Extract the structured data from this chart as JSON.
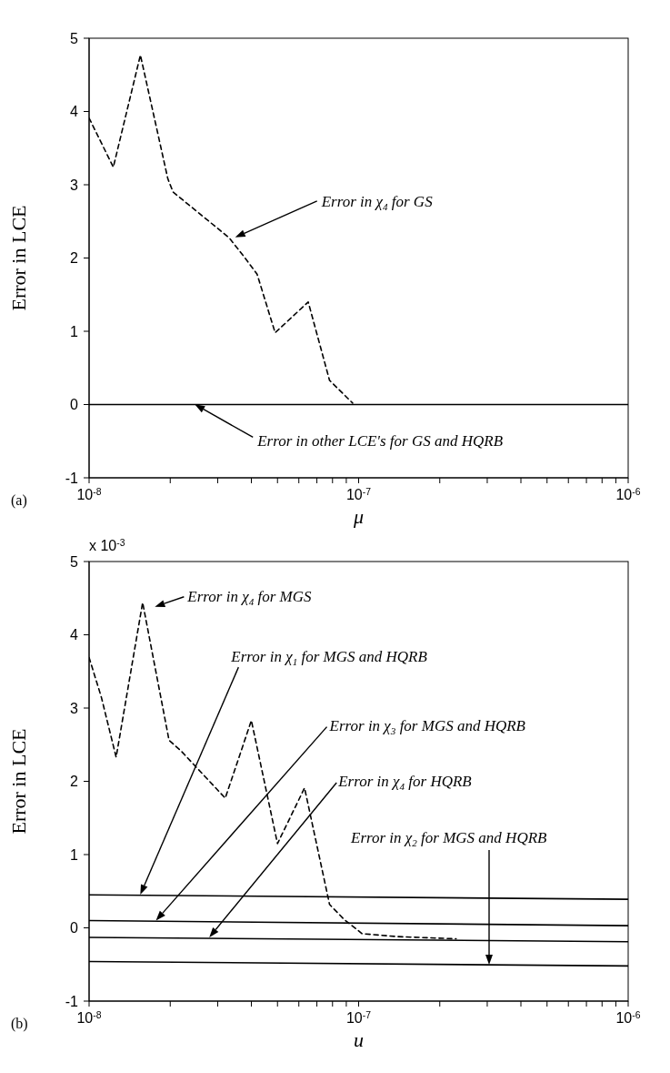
{
  "chart_data": [
    {
      "type": "line",
      "xlabel": "μ",
      "ylabel": "Error in LCE",
      "log": "x",
      "xlim": [
        1e-08,
        1e-06
      ],
      "xticks": [
        {
          "value": 1e-08,
          "label": "10$^{-8}$"
        },
        {
          "value": 2e-08,
          "label": null
        },
        {
          "value": 3e-08,
          "label": null
        },
        {
          "value": 4e-08,
          "label": null
        },
        {
          "value": 5e-08,
          "label": null
        },
        {
          "value": 6e-08,
          "label": null
        },
        {
          "value": 7e-08,
          "label": null
        },
        {
          "value": 8e-08,
          "label": null
        },
        {
          "value": 9e-08,
          "label": null
        },
        {
          "value": 1e-07,
          "label": "10$^{-7}$"
        },
        {
          "value": 2e-07,
          "label": null
        },
        {
          "value": 3e-07,
          "label": null
        },
        {
          "value": 4e-07,
          "label": null
        },
        {
          "value": 5e-07,
          "label": null
        },
        {
          "value": 6e-07,
          "label": null
        },
        {
          "value": 7e-07,
          "label": null
        },
        {
          "value": 8e-07,
          "label": null
        },
        {
          "value": 9e-07,
          "label": null
        },
        {
          "value": 1e-06,
          "label": "10$^{-6}$"
        }
      ],
      "ylim": [
        -1,
        5
      ],
      "yticks": [
        -1,
        0,
        1,
        2,
        3,
        4,
        5
      ],
      "series": [
        {
          "color": "#000000",
          "line_style": "dashed",
          "x": [
            1e-08,
            1.23e-08,
            1.55e-08,
            1.96e-08,
            2.05e-08,
            3.3e-08,
            3.7e-08,
            4.2e-08,
            4.9e-08,
            6.5e-08,
            7.8e-08,
            9.5e-08
          ],
          "values": [
            3.91,
            3.24,
            4.77,
            3.08,
            2.9,
            2.28,
            2.05,
            1.78,
            0.98,
            1.4,
            0.33,
            0.02
          ]
        },
        {
          "color": "#000000",
          "line_style": "solid",
          "x": [
            1e-08,
            1e-06
          ],
          "values": [
            0,
            0
          ]
        }
      ],
      "annotations": [
        "Error in χ$_{4}$ for GS",
        "Error in other LCE's for GS and HQRB",
        "(a)"
      ]
    },
    {
      "type": "line",
      "xlabel": "u",
      "ylabel": "Error in LCE",
      "log": "x",
      "xlim": [
        1e-08,
        1e-06
      ],
      "xticks": [
        {
          "value": 1e-08,
          "label": "10$^{-8}$"
        },
        {
          "value": 2e-08,
          "label": null
        },
        {
          "value": 3e-08,
          "label": null
        },
        {
          "value": 4e-08,
          "label": null
        },
        {
          "value": 5e-08,
          "label": null
        },
        {
          "value": 6e-08,
          "label": null
        },
        {
          "value": 7e-08,
          "label": null
        },
        {
          "value": 8e-08,
          "label": null
        },
        {
          "value": 9e-08,
          "label": null
        },
        {
          "value": 1e-07,
          "label": "10$^{-7}$"
        },
        {
          "value": 2e-07,
          "label": null
        },
        {
          "value": 3e-07,
          "label": null
        },
        {
          "value": 4e-07,
          "label": null
        },
        {
          "value": 5e-07,
          "label": null
        },
        {
          "value": 6e-07,
          "label": null
        },
        {
          "value": 7e-07,
          "label": null
        },
        {
          "value": 8e-07,
          "label": null
        },
        {
          "value": 9e-07,
          "label": null
        },
        {
          "value": 1e-06,
          "label": "10$^{-6}$"
        }
      ],
      "ylim": [
        -1,
        5
      ],
      "yticks": [
        -1,
        0,
        1,
        2,
        3,
        4,
        5
      ],
      "series": [
        {
          "color": "#000000",
          "line_style": "dashed",
          "x": [
            1e-08,
            1.11e-08,
            1.26e-08,
            1.58e-08,
            1.98e-08,
            2.2e-08,
            3.2e-08,
            4e-08,
            5e-08,
            6.3e-08,
            7.8e-08,
            8.8e-08,
            1.03e-07,
            1.4e-07,
            2.3e-07
          ],
          "values": [
            3.69,
            3.15,
            2.33,
            4.44,
            2.56,
            2.41,
            1.77,
            2.83,
            1.15,
            1.91,
            0.32,
            0.12,
            -0.08,
            -0.12,
            -0.15
          ]
        },
        {
          "color": "#000000",
          "line_style": "solid",
          "x": [
            1e-08,
            1e-06
          ],
          "values": [
            0.45,
            0.39
          ]
        },
        {
          "color": "#000000",
          "line_style": "solid",
          "x": [
            1e-08,
            1e-06
          ],
          "values": [
            0.1,
            0.03
          ]
        },
        {
          "color": "#000000",
          "line_style": "solid",
          "x": [
            1e-08,
            1e-06
          ],
          "values": [
            -0.13,
            -0.19
          ]
        },
        {
          "color": "#000000",
          "line_style": "solid",
          "x": [
            1e-08,
            1e-06
          ],
          "values": [
            -0.46,
            -0.52
          ]
        }
      ],
      "annotations": [
        "Error in χ$_{4}$ for MGS",
        "Error in χ$_{1}$ for MGS and HQRB",
        "Error in χ$_{3}$ for MGS and HQRB",
        "Error in χ$_{4}$ for HQRB",
        "Error in χ$_{2}$ for MGS and HQRB",
        "x 10$^{-3}$",
        "(b)"
      ]
    }
  ]
}
